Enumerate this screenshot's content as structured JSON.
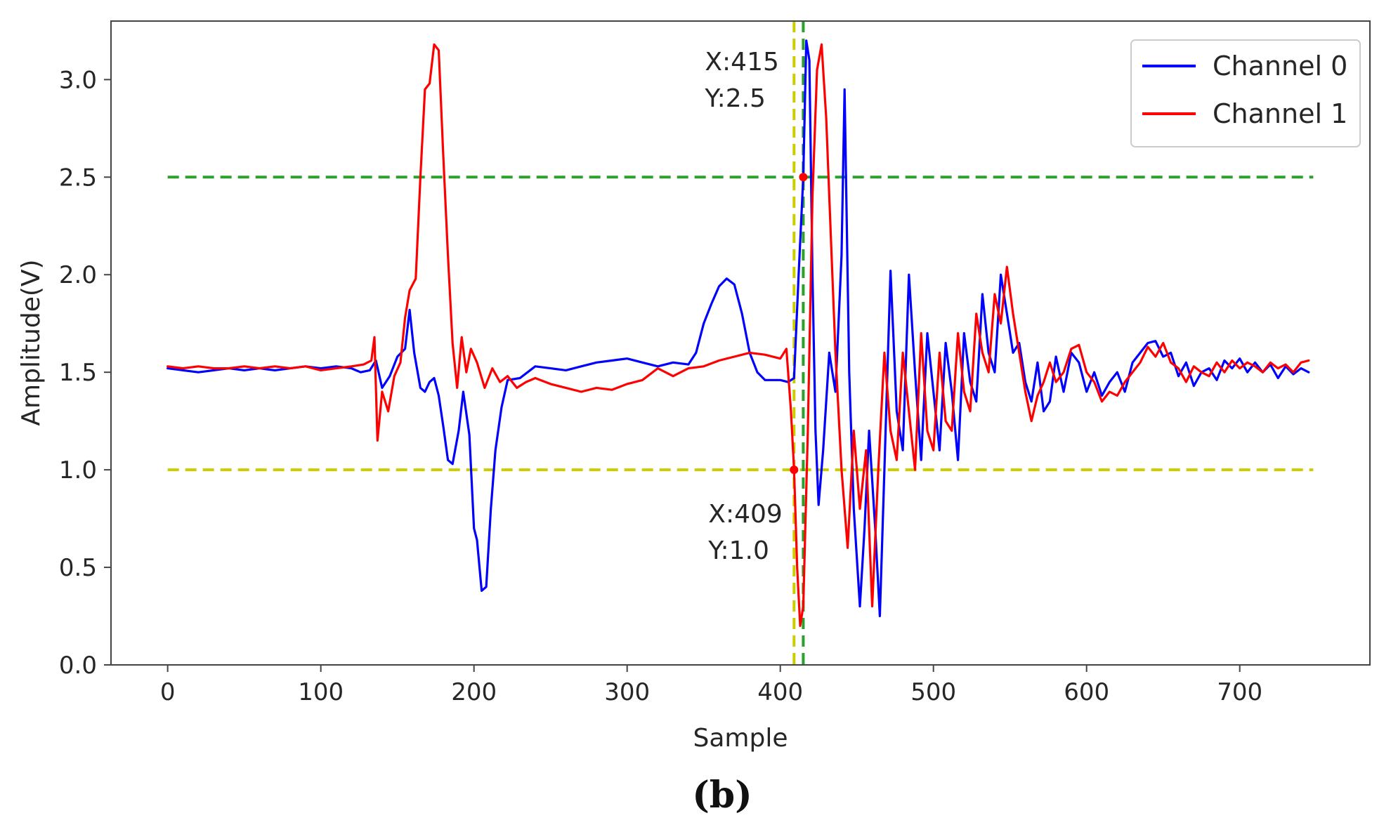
{
  "chart_data": {
    "type": "line",
    "title": "",
    "xlabel": "Sample",
    "ylabel": "Amplitude(V)",
    "xlim": [
      -37,
      785
    ],
    "ylim": [
      0,
      3.3
    ],
    "xticks": [
      0,
      100,
      200,
      300,
      400,
      500,
      600,
      700
    ],
    "yticks": [
      0.0,
      0.5,
      1.0,
      1.5,
      2.0,
      2.5,
      3.0
    ],
    "xtick_labels": [
      "0",
      "100",
      "200",
      "300",
      "400",
      "500",
      "600",
      "700"
    ],
    "ytick_labels": [
      "0.0",
      "0.5",
      "1.0",
      "1.5",
      "2.0",
      "2.5",
      "3.0"
    ],
    "grid": false,
    "legend_position": "top-right",
    "series": [
      {
        "name": "Channel 0",
        "color": "#0000ff",
        "points": [
          [
            0,
            1.52
          ],
          [
            10,
            1.51
          ],
          [
            20,
            1.5
          ],
          [
            30,
            1.51
          ],
          [
            40,
            1.52
          ],
          [
            50,
            1.51
          ],
          [
            60,
            1.52
          ],
          [
            70,
            1.51
          ],
          [
            80,
            1.52
          ],
          [
            90,
            1.53
          ],
          [
            100,
            1.52
          ],
          [
            110,
            1.53
          ],
          [
            120,
            1.52
          ],
          [
            126,
            1.5
          ],
          [
            132,
            1.51
          ],
          [
            136,
            1.56
          ],
          [
            140,
            1.42
          ],
          [
            145,
            1.48
          ],
          [
            150,
            1.58
          ],
          [
            155,
            1.62
          ],
          [
            158,
            1.82
          ],
          [
            161,
            1.6
          ],
          [
            165,
            1.42
          ],
          [
            168,
            1.4
          ],
          [
            171,
            1.45
          ],
          [
            174,
            1.47
          ],
          [
            177,
            1.38
          ],
          [
            180,
            1.22
          ],
          [
            183,
            1.05
          ],
          [
            186,
            1.03
          ],
          [
            190,
            1.2
          ],
          [
            193,
            1.4
          ],
          [
            197,
            1.18
          ],
          [
            200,
            0.7
          ],
          [
            202,
            0.64
          ],
          [
            205,
            0.38
          ],
          [
            208,
            0.4
          ],
          [
            211,
            0.8
          ],
          [
            214,
            1.1
          ],
          [
            218,
            1.32
          ],
          [
            222,
            1.46
          ],
          [
            230,
            1.47
          ],
          [
            240,
            1.53
          ],
          [
            250,
            1.52
          ],
          [
            260,
            1.51
          ],
          [
            270,
            1.53
          ],
          [
            280,
            1.55
          ],
          [
            290,
            1.56
          ],
          [
            300,
            1.57
          ],
          [
            310,
            1.55
          ],
          [
            320,
            1.53
          ],
          [
            330,
            1.55
          ],
          [
            340,
            1.54
          ],
          [
            345,
            1.6
          ],
          [
            350,
            1.75
          ],
          [
            355,
            1.85
          ],
          [
            360,
            1.94
          ],
          [
            365,
            1.98
          ],
          [
            370,
            1.95
          ],
          [
            375,
            1.8
          ],
          [
            380,
            1.6
          ],
          [
            385,
            1.5
          ],
          [
            390,
            1.46
          ],
          [
            400,
            1.46
          ],
          [
            405,
            1.45
          ],
          [
            409,
            1.47
          ],
          [
            412,
            2.0
          ],
          [
            415,
            2.5
          ],
          [
            417,
            3.2
          ],
          [
            419,
            3.1
          ],
          [
            421,
            2.0
          ],
          [
            423,
            1.2
          ],
          [
            425,
            0.82
          ],
          [
            428,
            1.1
          ],
          [
            432,
            1.6
          ],
          [
            436,
            1.4
          ],
          [
            440,
            2.1
          ],
          [
            442,
            2.95
          ],
          [
            445,
            1.5
          ],
          [
            448,
            0.8
          ],
          [
            452,
            0.3
          ],
          [
            455,
            0.7
          ],
          [
            458,
            1.2
          ],
          [
            462,
            0.7
          ],
          [
            465,
            0.25
          ],
          [
            468,
            1.0
          ],
          [
            472,
            2.02
          ],
          [
            476,
            1.3
          ],
          [
            480,
            1.1
          ],
          [
            484,
            2.0
          ],
          [
            488,
            1.5
          ],
          [
            492,
            1.05
          ],
          [
            496,
            1.7
          ],
          [
            500,
            1.4
          ],
          [
            504,
            1.1
          ],
          [
            508,
            1.65
          ],
          [
            512,
            1.4
          ],
          [
            516,
            1.05
          ],
          [
            520,
            1.7
          ],
          [
            524,
            1.45
          ],
          [
            528,
            1.35
          ],
          [
            532,
            1.9
          ],
          [
            536,
            1.6
          ],
          [
            540,
            1.5
          ],
          [
            544,
            2.0
          ],
          [
            548,
            1.8
          ],
          [
            552,
            1.6
          ],
          [
            556,
            1.65
          ],
          [
            560,
            1.45
          ],
          [
            564,
            1.35
          ],
          [
            568,
            1.55
          ],
          [
            572,
            1.3
          ],
          [
            576,
            1.35
          ],
          [
            580,
            1.58
          ],
          [
            585,
            1.4
          ],
          [
            590,
            1.6
          ],
          [
            595,
            1.55
          ],
          [
            600,
            1.4
          ],
          [
            605,
            1.5
          ],
          [
            610,
            1.38
          ],
          [
            615,
            1.45
          ],
          [
            620,
            1.5
          ],
          [
            625,
            1.4
          ],
          [
            630,
            1.55
          ],
          [
            635,
            1.6
          ],
          [
            640,
            1.65
          ],
          [
            645,
            1.66
          ],
          [
            650,
            1.58
          ],
          [
            655,
            1.6
          ],
          [
            660,
            1.48
          ],
          [
            665,
            1.55
          ],
          [
            670,
            1.43
          ],
          [
            675,
            1.5
          ],
          [
            680,
            1.52
          ],
          [
            685,
            1.46
          ],
          [
            690,
            1.56
          ],
          [
            695,
            1.52
          ],
          [
            700,
            1.57
          ],
          [
            705,
            1.5
          ],
          [
            710,
            1.55
          ],
          [
            715,
            1.5
          ],
          [
            720,
            1.54
          ],
          [
            725,
            1.47
          ],
          [
            730,
            1.53
          ],
          [
            735,
            1.49
          ],
          [
            740,
            1.52
          ],
          [
            745,
            1.5
          ]
        ]
      },
      {
        "name": "Channel 1",
        "color": "#ff0000",
        "points": [
          [
            0,
            1.53
          ],
          [
            10,
            1.52
          ],
          [
            20,
            1.53
          ],
          [
            30,
            1.52
          ],
          [
            40,
            1.52
          ],
          [
            50,
            1.53
          ],
          [
            60,
            1.52
          ],
          [
            70,
            1.53
          ],
          [
            80,
            1.52
          ],
          [
            90,
            1.53
          ],
          [
            100,
            1.51
          ],
          [
            110,
            1.52
          ],
          [
            120,
            1.53
          ],
          [
            128,
            1.54
          ],
          [
            133,
            1.56
          ],
          [
            135,
            1.68
          ],
          [
            137,
            1.15
          ],
          [
            140,
            1.4
          ],
          [
            144,
            1.3
          ],
          [
            148,
            1.48
          ],
          [
            152,
            1.55
          ],
          [
            155,
            1.78
          ],
          [
            158,
            1.92
          ],
          [
            162,
            1.98
          ],
          [
            165,
            2.5
          ],
          [
            168,
            2.95
          ],
          [
            171,
            2.98
          ],
          [
            174,
            3.18
          ],
          [
            177,
            3.15
          ],
          [
            180,
            2.6
          ],
          [
            183,
            2.1
          ],
          [
            186,
            1.65
          ],
          [
            189,
            1.42
          ],
          [
            192,
            1.68
          ],
          [
            195,
            1.5
          ],
          [
            198,
            1.62
          ],
          [
            202,
            1.55
          ],
          [
            207,
            1.42
          ],
          [
            212,
            1.52
          ],
          [
            217,
            1.45
          ],
          [
            222,
            1.48
          ],
          [
            228,
            1.42
          ],
          [
            234,
            1.45
          ],
          [
            240,
            1.47
          ],
          [
            250,
            1.44
          ],
          [
            260,
            1.42
          ],
          [
            270,
            1.4
          ],
          [
            280,
            1.42
          ],
          [
            290,
            1.41
          ],
          [
            300,
            1.44
          ],
          [
            310,
            1.46
          ],
          [
            320,
            1.52
          ],
          [
            330,
            1.48
          ],
          [
            340,
            1.52
          ],
          [
            350,
            1.53
          ],
          [
            360,
            1.56
          ],
          [
            370,
            1.58
          ],
          [
            380,
            1.6
          ],
          [
            390,
            1.59
          ],
          [
            400,
            1.57
          ],
          [
            404,
            1.62
          ],
          [
            407,
            1.3
          ],
          [
            409,
            1.0
          ],
          [
            411,
            0.5
          ],
          [
            413,
            0.2
          ],
          [
            415,
            0.3
          ],
          [
            418,
            1.2
          ],
          [
            421,
            2.4
          ],
          [
            424,
            3.05
          ],
          [
            427,
            3.18
          ],
          [
            430,
            2.8
          ],
          [
            433,
            2.2
          ],
          [
            436,
            1.6
          ],
          [
            440,
            1.0
          ],
          [
            444,
            0.6
          ],
          [
            448,
            1.2
          ],
          [
            452,
            0.8
          ],
          [
            456,
            1.1
          ],
          [
            460,
            0.3
          ],
          [
            464,
            1.0
          ],
          [
            468,
            1.6
          ],
          [
            472,
            1.2
          ],
          [
            476,
            1.05
          ],
          [
            480,
            1.6
          ],
          [
            484,
            1.3
          ],
          [
            488,
            1.0
          ],
          [
            492,
            1.7
          ],
          [
            496,
            1.2
          ],
          [
            500,
            1.1
          ],
          [
            504,
            1.6
          ],
          [
            508,
            1.25
          ],
          [
            512,
            1.2
          ],
          [
            516,
            1.7
          ],
          [
            520,
            1.4
          ],
          [
            524,
            1.3
          ],
          [
            528,
            1.8
          ],
          [
            532,
            1.6
          ],
          [
            536,
            1.5
          ],
          [
            540,
            1.9
          ],
          [
            544,
            1.75
          ],
          [
            548,
            2.04
          ],
          [
            552,
            1.8
          ],
          [
            556,
            1.6
          ],
          [
            560,
            1.4
          ],
          [
            564,
            1.25
          ],
          [
            568,
            1.38
          ],
          [
            572,
            1.45
          ],
          [
            576,
            1.55
          ],
          [
            580,
            1.45
          ],
          [
            585,
            1.5
          ],
          [
            590,
            1.62
          ],
          [
            595,
            1.64
          ],
          [
            600,
            1.5
          ],
          [
            605,
            1.45
          ],
          [
            610,
            1.35
          ],
          [
            615,
            1.4
          ],
          [
            620,
            1.38
          ],
          [
            625,
            1.45
          ],
          [
            630,
            1.5
          ],
          [
            635,
            1.55
          ],
          [
            640,
            1.63
          ],
          [
            645,
            1.58
          ],
          [
            650,
            1.65
          ],
          [
            655,
            1.55
          ],
          [
            660,
            1.52
          ],
          [
            665,
            1.45
          ],
          [
            670,
            1.53
          ],
          [
            675,
            1.5
          ],
          [
            680,
            1.48
          ],
          [
            685,
            1.55
          ],
          [
            690,
            1.5
          ],
          [
            695,
            1.56
          ],
          [
            700,
            1.52
          ],
          [
            705,
            1.55
          ],
          [
            710,
            1.53
          ],
          [
            715,
            1.5
          ],
          [
            720,
            1.55
          ],
          [
            725,
            1.52
          ],
          [
            730,
            1.54
          ],
          [
            735,
            1.5
          ],
          [
            740,
            1.55
          ],
          [
            745,
            1.56
          ]
        ]
      }
    ],
    "reference_lines": [
      {
        "orientation": "horizontal",
        "value": 2.5,
        "color": "#2ca02c",
        "style": "dashed",
        "from": 0,
        "to": 748
      },
      {
        "orientation": "horizontal",
        "value": 1.0,
        "color": "#cccc00",
        "style": "dashed",
        "from": 0,
        "to": 748
      },
      {
        "orientation": "vertical",
        "value": 409,
        "color": "#cccc00",
        "style": "dashed"
      },
      {
        "orientation": "vertical",
        "value": 415,
        "color": "#2ca02c",
        "style": "dashed"
      }
    ],
    "markers": [
      {
        "x": 415,
        "y": 2.5,
        "color": "#ff0000"
      },
      {
        "x": 409,
        "y": 1.0,
        "color": "#ff0000"
      }
    ],
    "annotations": [
      {
        "id": "ann-415",
        "lines": [
          "X:415",
          "Y:2.5"
        ],
        "anchor_x": 415,
        "anchor_y": 2.5
      },
      {
        "id": "ann-409",
        "lines": [
          "X:409",
          "Y:1.0"
        ],
        "anchor_x": 409,
        "anchor_y": 1.0
      }
    ]
  },
  "caption": "(b)"
}
